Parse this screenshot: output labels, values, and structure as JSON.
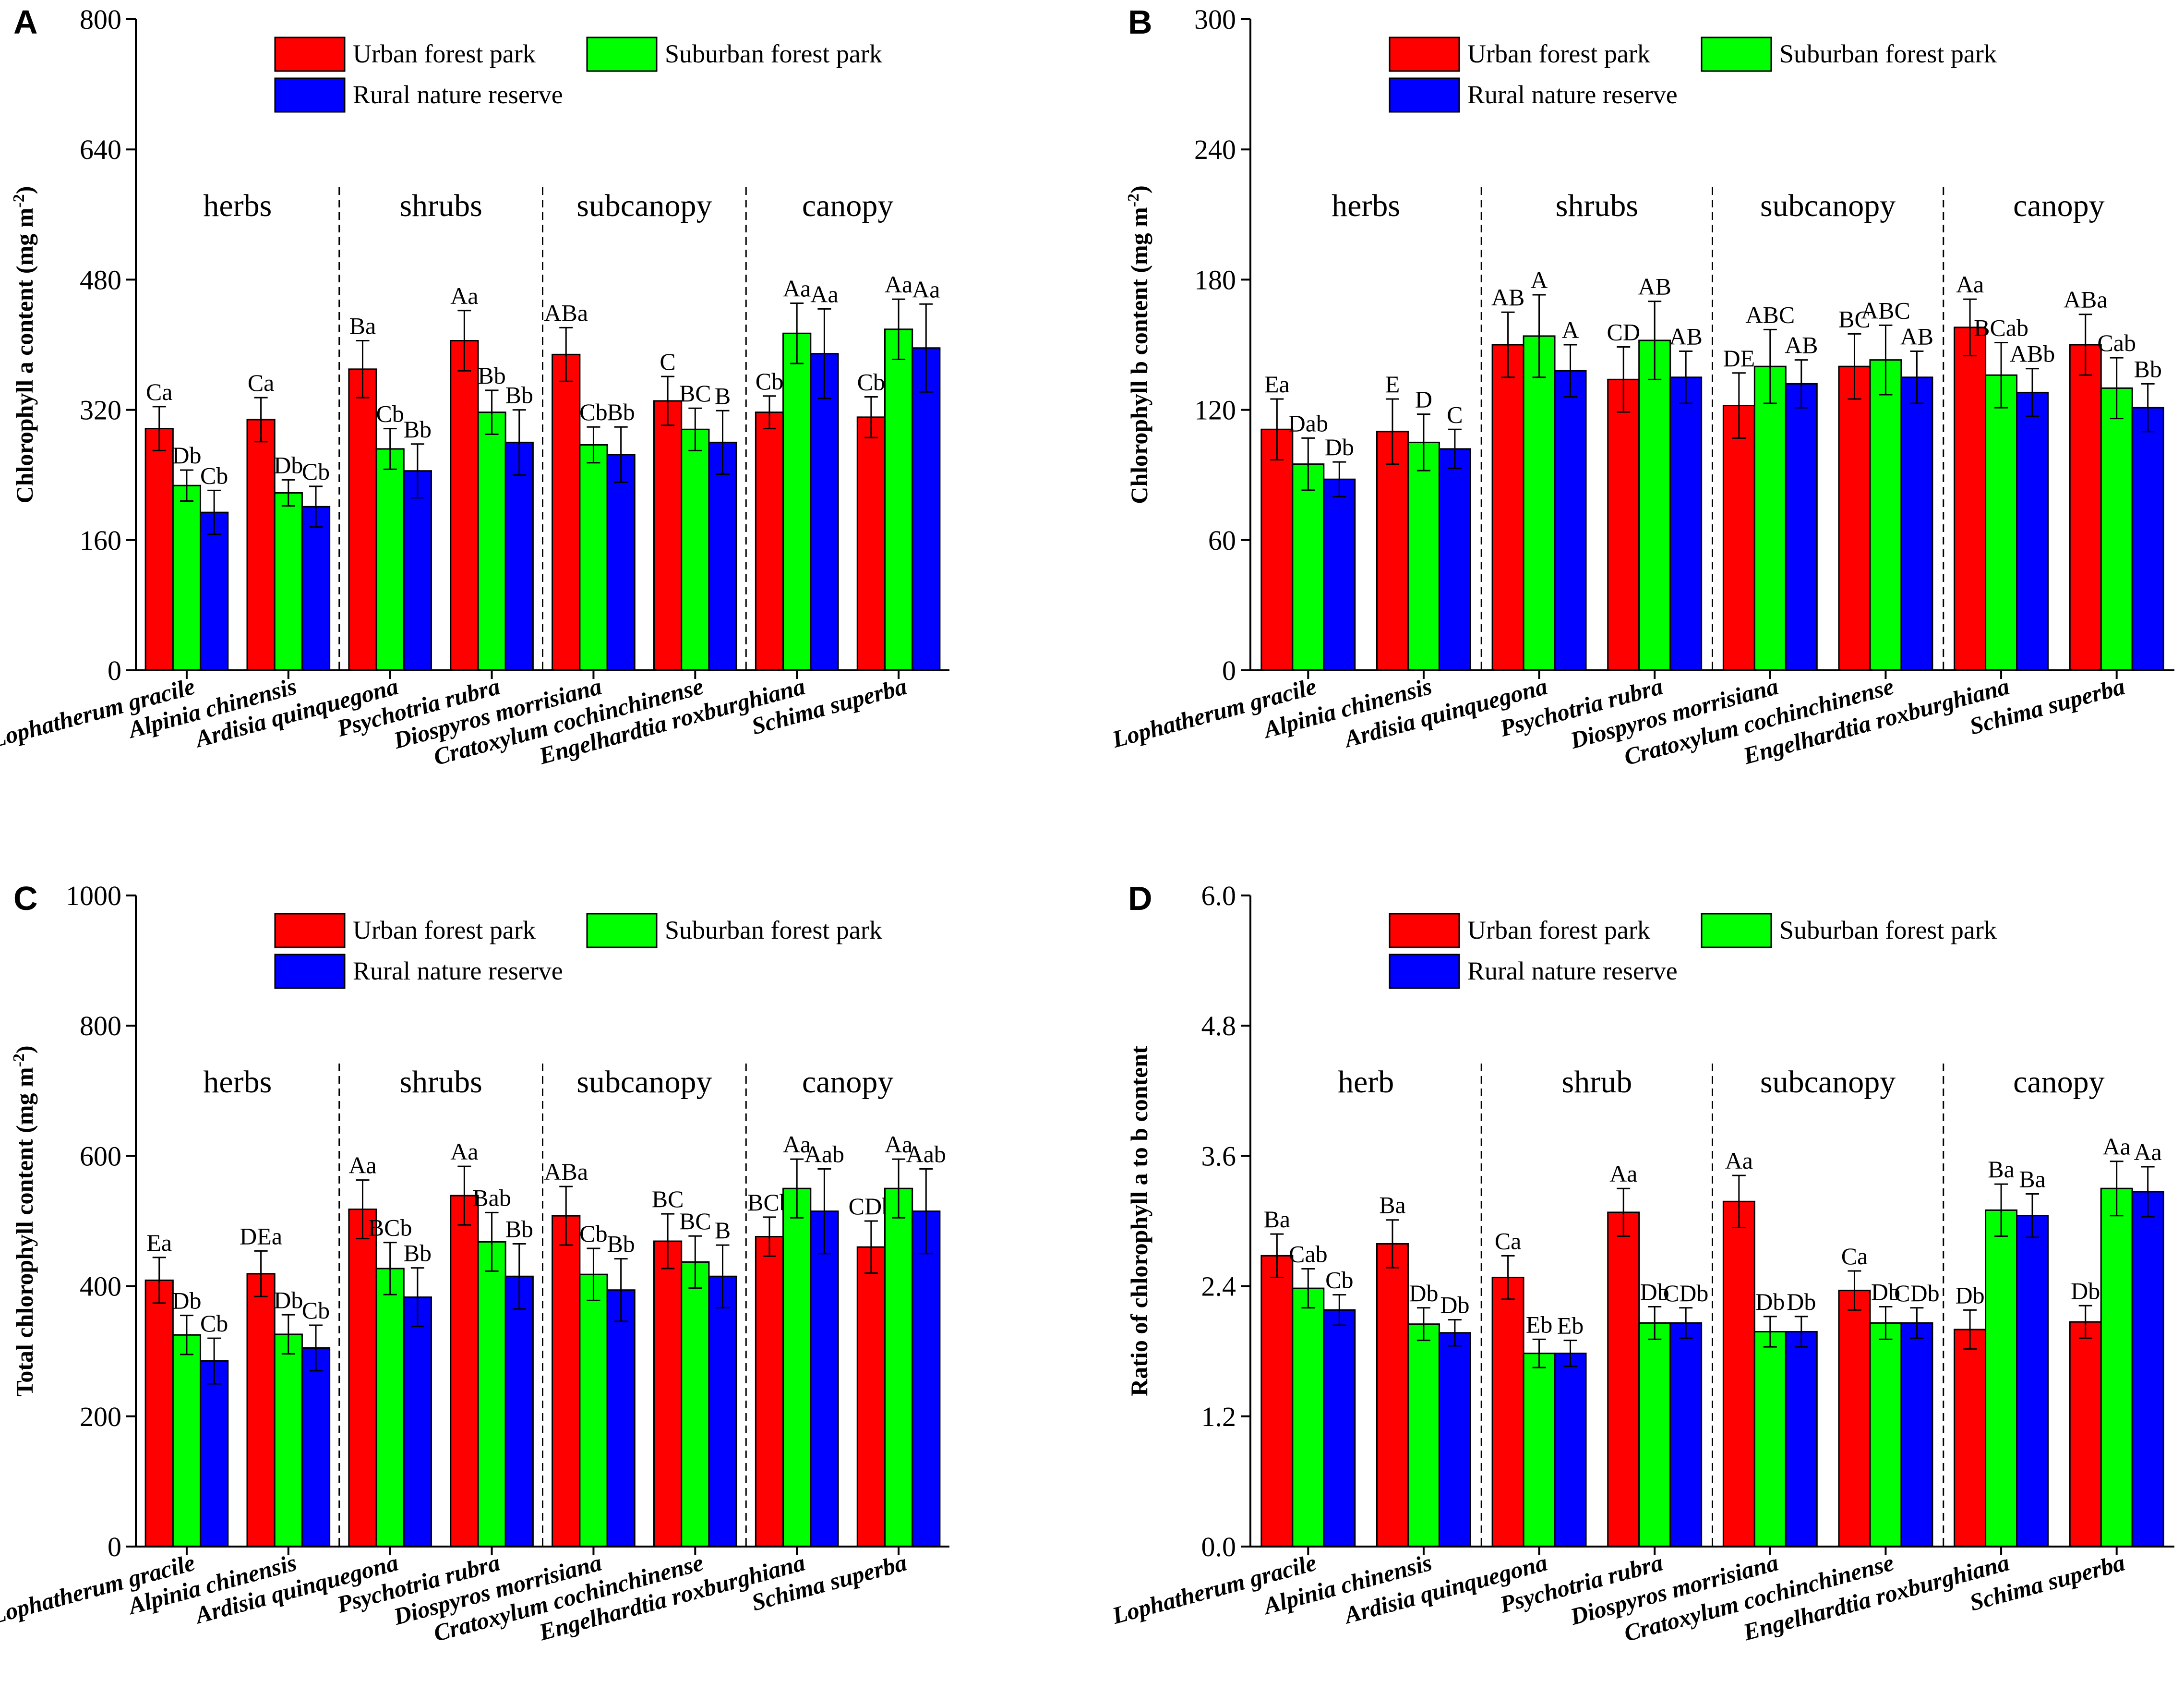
{
  "figure": {
    "legend": [
      {
        "name": "Urban forest park",
        "color": "#ff0000"
      },
      {
        "name": "Suburban forest park",
        "color": "#00ff00"
      },
      {
        "name": "Rural nature reserve",
        "color": "#0000ff"
      }
    ],
    "categories": [
      "Lophatherum gracile",
      "Alpinia chinensis",
      "Ardisia quinquegona",
      "Psychotria rubra",
      "Diospyros morrisiana",
      "Cratoxylum cochinchinense",
      "Engelhardtia roxburghiana",
      "Schima superba"
    ]
  },
  "chart_data": [
    {
      "panel": "A",
      "type": "bar",
      "ylabel": "Chlorophyll a content (mg m",
      "ylabel_sup": "-2",
      "ylabel_close": ")",
      "ylim": [
        0,
        800
      ],
      "yticks": [
        "0",
        "160",
        "320",
        "480",
        "640",
        "800"
      ],
      "groups": [
        "herbs",
        "shrubs",
        "subcanopy",
        "canopy"
      ],
      "series": [
        {
          "name": "Urban forest park",
          "values": [
            297,
            308,
            370,
            405,
            388,
            331,
            317,
            311
          ],
          "errors": [
            27,
            27,
            35,
            37,
            33,
            30,
            20,
            25
          ],
          "letters": [
            "Ca",
            "Ca",
            "Ba",
            "Aa",
            "ABa",
            "C",
            "Cb",
            "Cb"
          ]
        },
        {
          "name": "Suburban forest park",
          "values": [
            227,
            218,
            272,
            317,
            277,
            296,
            414,
            419
          ],
          "errors": [
            19,
            16,
            25,
            27,
            22,
            26,
            37,
            37
          ],
          "letters": [
            "Db",
            "Db",
            "Cb",
            "Bb",
            "Cb",
            "BC",
            "Aa",
            "Aa"
          ]
        },
        {
          "name": "Rural nature reserve",
          "values": [
            194,
            201,
            245,
            280,
            265,
            280,
            389,
            396
          ],
          "errors": [
            27,
            25,
            33,
            40,
            34,
            39,
            55,
            54
          ],
          "letters": [
            "Cb",
            "Cb",
            "Bb",
            "Bb",
            "Bb",
            "B",
            "Aa",
            "Aa"
          ]
        }
      ]
    },
    {
      "panel": "B",
      "type": "bar",
      "ylabel": "Chlorophyll b content (mg m",
      "ylabel_sup": "-2",
      "ylabel_close": ")",
      "ylim": [
        0,
        300
      ],
      "yticks": [
        "0",
        "60",
        "120",
        "180",
        "240",
        "300"
      ],
      "groups": [
        "herbs",
        "shrubs",
        "subcanopy",
        "canopy"
      ],
      "series": [
        {
          "name": "Urban forest park",
          "values": [
            111,
            110,
            150,
            134,
            122,
            140,
            158,
            150
          ],
          "errors": [
            14,
            15,
            15,
            15,
            15,
            15,
            13,
            14
          ],
          "letters": [
            "Ea",
            "E",
            "AB",
            "CD",
            "DE",
            "BC",
            "Aa",
            "ABa"
          ]
        },
        {
          "name": "Suburban forest park",
          "values": [
            95,
            105,
            154,
            152,
            140,
            143,
            136,
            130
          ],
          "errors": [
            12,
            13,
            19,
            18,
            17,
            16,
            15,
            14
          ],
          "letters": [
            "Dab",
            "D",
            "A",
            "AB",
            "ABC",
            "ABC",
            "BCab",
            "Cab"
          ]
        },
        {
          "name": "Rural nature reserve",
          "values": [
            88,
            102,
            138,
            135,
            132,
            135,
            128,
            121
          ],
          "errors": [
            8,
            9,
            12,
            12,
            11,
            12,
            11,
            11
          ],
          "letters": [
            "Db",
            "C",
            "A",
            "AB",
            "AB",
            "AB",
            "ABb",
            "Bb"
          ]
        }
      ]
    },
    {
      "panel": "C",
      "type": "bar",
      "ylabel": "Total chlorophyll content (mg m",
      "ylabel_sup": "-2",
      "ylabel_close": ")",
      "ylim": [
        0,
        1000
      ],
      "yticks": [
        "0",
        "200",
        "400",
        "600",
        "800",
        "1000"
      ],
      "groups": [
        "herbs",
        "shrubs",
        "subcanopy",
        "canopy"
      ],
      "series": [
        {
          "name": "Urban forest park",
          "values": [
            409,
            419,
            518,
            539,
            508,
            469,
            476,
            460
          ],
          "errors": [
            35,
            35,
            45,
            45,
            45,
            42,
            30,
            40
          ],
          "letters": [
            "Ea",
            "DEa",
            "Aa",
            "Aa",
            "ABa",
            "BC",
            "BCb",
            "CDb"
          ]
        },
        {
          "name": "Suburban forest park",
          "values": [
            325,
            326,
            427,
            468,
            418,
            437,
            550,
            550
          ],
          "errors": [
            30,
            30,
            40,
            45,
            40,
            40,
            45,
            45
          ],
          "letters": [
            "Db",
            "Db",
            "BCb",
            "Bab",
            "Cb",
            "BC",
            "Aa",
            "Aa"
          ]
        },
        {
          "name": "Rural nature reserve",
          "values": [
            285,
            305,
            383,
            415,
            394,
            415,
            515,
            515
          ],
          "errors": [
            35,
            35,
            45,
            50,
            48,
            48,
            65,
            65
          ],
          "letters": [
            "Cb",
            "Cb",
            "Bb",
            "Bb",
            "Bb",
            "B",
            "Aab",
            "Aab"
          ]
        }
      ]
    },
    {
      "panel": "D",
      "type": "bar",
      "ylabel": "Ratio of chlorophyll a to b content",
      "ylabel_sup": "",
      "ylabel_close": "",
      "ylim": [
        0,
        6
      ],
      "yticks": [
        "0.0",
        "1.2",
        "2.4",
        "3.6",
        "4.8",
        "6.0"
      ],
      "groups": [
        "herb",
        "shrub",
        "subcanopy",
        "canopy"
      ],
      "series": [
        {
          "name": "Urban forest park",
          "values": [
            2.68,
            2.79,
            2.48,
            3.08,
            3.18,
            2.36,
            2.0,
            2.07
          ],
          "errors": [
            0.2,
            0.22,
            0.2,
            0.22,
            0.24,
            0.18,
            0.18,
            0.15
          ],
          "letters": [
            "Ba",
            "Ba",
            "Ca",
            "Aa",
            "Aa",
            "Ca",
            "Db",
            "Db"
          ]
        },
        {
          "name": "Suburban forest park",
          "values": [
            2.38,
            2.05,
            1.78,
            2.06,
            1.98,
            2.06,
            3.1,
            3.3
          ],
          "errors": [
            0.18,
            0.15,
            0.13,
            0.15,
            0.14,
            0.15,
            0.24,
            0.25
          ],
          "letters": [
            "Cab",
            "Db",
            "Eb",
            "Db",
            "Db",
            "Db",
            "Ba",
            "Aa"
          ]
        },
        {
          "name": "Rural nature reserve",
          "values": [
            2.18,
            1.97,
            1.78,
            2.06,
            1.98,
            2.06,
            3.05,
            3.27
          ],
          "errors": [
            0.14,
            0.12,
            0.12,
            0.14,
            0.14,
            0.14,
            0.2,
            0.23
          ],
          "letters": [
            "Cb",
            "Db",
            "Eb",
            "CDb",
            "Db",
            "CDb",
            "Ba",
            "Aa"
          ]
        }
      ]
    }
  ]
}
